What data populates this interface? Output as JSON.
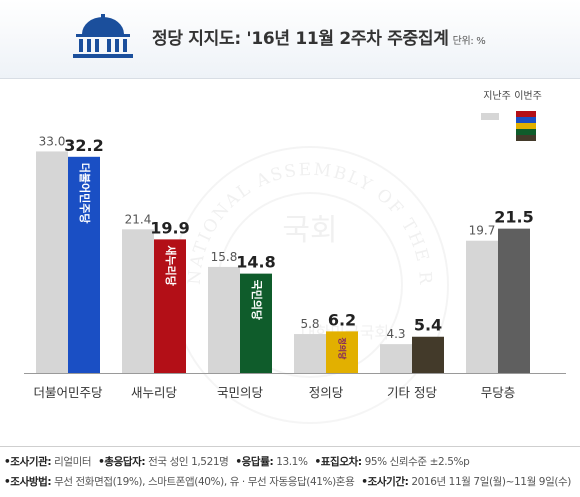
{
  "header": {
    "title": "정당 지지도: '16년 11월 2주차 주중집계",
    "unit_label": "단위: %"
  },
  "chart_data": {
    "type": "bar",
    "categories": [
      "더불어민주당",
      "새누리당",
      "국민의당",
      "정의당",
      "기타 정당",
      "무당층"
    ],
    "series": [
      {
        "name": "지난주",
        "values": [
          33.0,
          21.4,
          15.8,
          5.8,
          4.3,
          19.7
        ]
      },
      {
        "name": "이번주",
        "values": [
          32.2,
          19.9,
          14.8,
          6.2,
          5.4,
          21.5
        ]
      }
    ],
    "value_labels": {
      "prev": [
        "33.0",
        "21.4",
        "15.8",
        "5.8",
        "4.3",
        "19.7"
      ],
      "curr": [
        "32.2",
        "19.9",
        "14.8",
        "6.2",
        "5.4",
        "21.5"
      ]
    },
    "colors": {
      "prev": "#d6d6d6",
      "curr": [
        "#1a4fc4",
        "#b30f17",
        "#0f5c2b",
        "#e2b000",
        "#433a2a",
        "#5f5f5f"
      ]
    },
    "ylim": [
      0,
      35
    ],
    "legend_position": "top-right",
    "legend_current_colors": [
      "#b30f17",
      "#1a4fc4",
      "#e2b000",
      "#0f5c2b",
      "#433a2a"
    ],
    "bar_party_labels": [
      "더불어민주당",
      "새누리당",
      "국민의당",
      "정의당"
    ],
    "grid": false
  },
  "footer": {
    "line1": [
      {
        "key": "•조사기관:",
        "value": "리얼미터"
      },
      {
        "key": "•총응답자:",
        "value": "전국 성인 1,521명"
      },
      {
        "key": "•응답률:",
        "value": "13.1%"
      },
      {
        "key": "•표집오차:",
        "value": "95% 신뢰수준 ±2.5%p"
      }
    ],
    "line2": [
      {
        "key": "•조사방법:",
        "value": "무선 전화면접(19%), 스마트폰앱(40%), 유 · 무선 자동응답(41%)혼용"
      },
      {
        "key": "•조사기간:",
        "value": "2016년 11월 7일(월)~11월 9일(수)"
      }
    ]
  },
  "watermark": {
    "ring_text": "NATIONAL ASSEMBLY OF THE REPUBLIC OF KOREA",
    "center_text": "국회",
    "bottom_text": "대한민국국회"
  }
}
